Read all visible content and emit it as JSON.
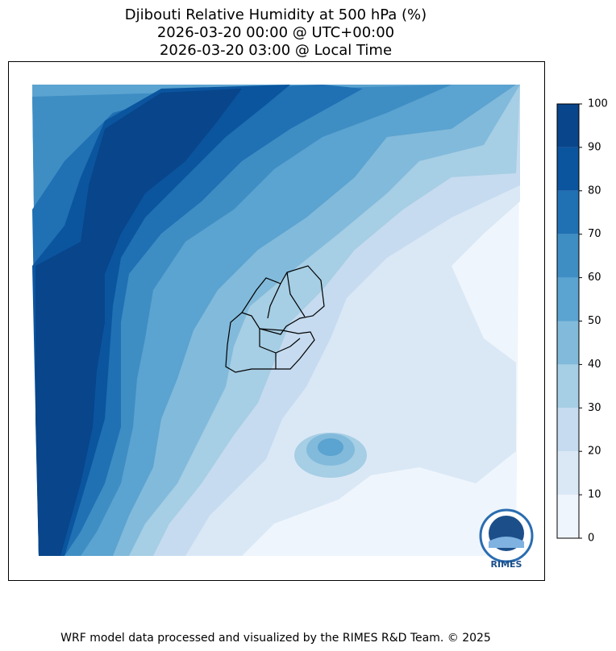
{
  "title": [
    "Djibouti Relative Humidity at 500 hPa (%)",
    "2026-03-20 00:00 @ UTC+00:00",
    "2026-03-20 03:00 @ Local Time"
  ],
  "colorbar": {
    "ticks": [
      0,
      10,
      20,
      30,
      40,
      50,
      60,
      70,
      80,
      90,
      100
    ],
    "colors": [
      "#eff5fc",
      "#dae8f6",
      "#c6dbef",
      "#a6cee4",
      "#82badb",
      "#5ba3d0",
      "#3e8ec4",
      "#2070b4",
      "#0b559f",
      "#08458a"
    ]
  },
  "logo": "RIMES",
  "footer": "WRF model data processed and visualized by the RIMES R&D Team. © 2025"
}
